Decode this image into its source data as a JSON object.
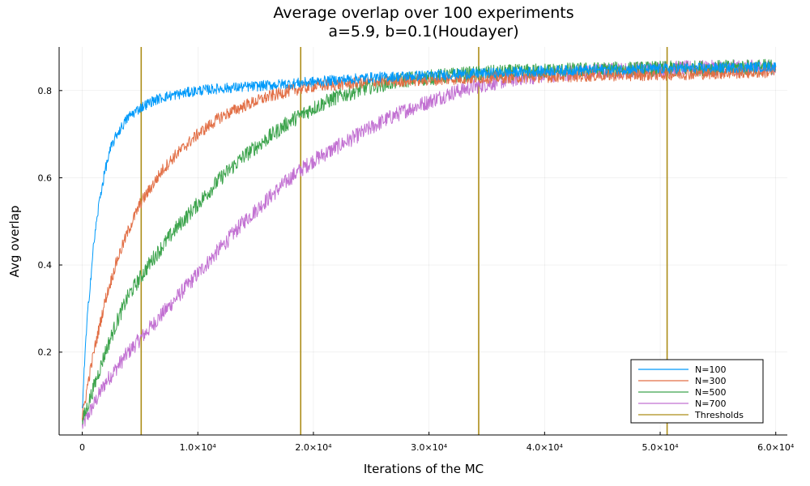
{
  "chart_data": {
    "type": "line",
    "title": "Average overlap over 100 experiments",
    "subtitle": "a=5.9, b=0.1(Houdayer)",
    "xlabel": "Iterations of the MC",
    "ylabel": "Avg overlap",
    "xlim": [
      -2000,
      61000
    ],
    "ylim": [
      0.01,
      0.9
    ],
    "x_ticks": [
      {
        "value": 0,
        "label": "0"
      },
      {
        "value": 10000,
        "label": "1.0×10⁴"
      },
      {
        "value": 20000,
        "label": "2.0×10⁴"
      },
      {
        "value": 30000,
        "label": "3.0×10⁴"
      },
      {
        "value": 40000,
        "label": "4.0×10⁴"
      },
      {
        "value": 50000,
        "label": "5.0×10⁴"
      },
      {
        "value": 60000,
        "label": "6.0×10⁴"
      }
    ],
    "y_ticks": [
      {
        "value": 0.2,
        "label": "0.2"
      },
      {
        "value": 0.4,
        "label": "0.4"
      },
      {
        "value": 0.6,
        "label": "0.6"
      },
      {
        "value": 0.8,
        "label": "0.8"
      }
    ],
    "grid": true,
    "legend_position": "bottom-right",
    "series": [
      {
        "name": "N=100",
        "color": "#009AFA",
        "noise": 0.012,
        "x": [
          0,
          250,
          500,
          1000,
          1500,
          2000,
          2500,
          3000,
          4000,
          5000,
          6000,
          7000,
          8000,
          10000,
          12000,
          15000,
          20000,
          25000,
          30000,
          35000,
          40000,
          45000,
          50000,
          55000,
          60000
        ],
        "y": [
          0.07,
          0.2,
          0.3,
          0.45,
          0.55,
          0.62,
          0.67,
          0.7,
          0.74,
          0.76,
          0.775,
          0.785,
          0.79,
          0.8,
          0.805,
          0.81,
          0.82,
          0.83,
          0.835,
          0.84,
          0.845,
          0.848,
          0.85,
          0.852,
          0.855
        ]
      },
      {
        "name": "N=300",
        "color": "#E26F46",
        "noise": 0.014,
        "x": [
          0,
          500,
          1000,
          2000,
          3000,
          4000,
          5000,
          6000,
          7000,
          8000,
          10000,
          12000,
          14000,
          16000,
          18000,
          20000,
          25000,
          30000,
          35000,
          40000,
          45000,
          50000,
          55000,
          60000
        ],
        "y": [
          0.05,
          0.13,
          0.2,
          0.32,
          0.41,
          0.48,
          0.54,
          0.58,
          0.62,
          0.65,
          0.7,
          0.74,
          0.765,
          0.785,
          0.8,
          0.81,
          0.82,
          0.825,
          0.83,
          0.832,
          0.835,
          0.837,
          0.84,
          0.843
        ]
      },
      {
        "name": "N=500",
        "color": "#3DA44D",
        "noise": 0.018,
        "x": [
          0,
          1000,
          2000,
          3000,
          4000,
          5000,
          6000,
          8000,
          10000,
          12000,
          14000,
          16000,
          18000,
          20000,
          22000,
          25000,
          28000,
          30000,
          32000,
          35000,
          40000,
          45000,
          50000,
          55000,
          60000
        ],
        "y": [
          0.04,
          0.12,
          0.2,
          0.27,
          0.33,
          0.37,
          0.41,
          0.48,
          0.54,
          0.6,
          0.65,
          0.69,
          0.73,
          0.76,
          0.785,
          0.81,
          0.825,
          0.83,
          0.835,
          0.84,
          0.845,
          0.848,
          0.85,
          0.852,
          0.855
        ]
      },
      {
        "name": "N=700",
        "color": "#C271D2",
        "noise": 0.018,
        "x": [
          0,
          1000,
          2000,
          4000,
          6000,
          8000,
          10000,
          12000,
          14000,
          16000,
          18000,
          20000,
          22000,
          24000,
          26000,
          28000,
          30000,
          32000,
          34000,
          36000,
          38000,
          40000,
          42000,
          45000,
          50000,
          55000,
          60000
        ],
        "y": [
          0.03,
          0.08,
          0.13,
          0.2,
          0.26,
          0.32,
          0.38,
          0.44,
          0.5,
          0.55,
          0.6,
          0.64,
          0.67,
          0.7,
          0.73,
          0.755,
          0.775,
          0.795,
          0.81,
          0.82,
          0.83,
          0.835,
          0.84,
          0.845,
          0.85,
          0.852,
          0.853
        ]
      }
    ],
    "thresholds": {
      "name": "Thresholds",
      "color": "#AC8D18",
      "x": [
        5100,
        18900,
        34300,
        50600
      ]
    }
  }
}
